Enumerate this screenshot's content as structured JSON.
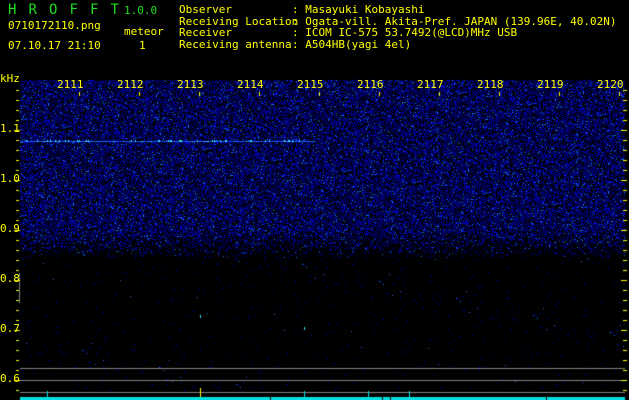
{
  "app": {
    "title_letters": [
      "H",
      "R",
      "O",
      "F",
      "F",
      "T"
    ],
    "version": "1.0.0"
  },
  "file": {
    "name": "0710172110.png",
    "datetime": "07.10.17 21:10"
  },
  "meteor": {
    "label": "meteor",
    "count": "1"
  },
  "info": [
    {
      "label": "Observer",
      "value": ": Masayuki Kobayashi"
    },
    {
      "label": "Receiving Location",
      "value": ": Ogata-vill. Akita-Pref. JAPAN (139.96E, 40.02N)"
    },
    {
      "label": "Receiver",
      "value": ": ICOM IC-575 53.7492(@LCD)MHz USB"
    },
    {
      "label": "Receiving antenna",
      "value": ": A504HB(yagi 4el)"
    }
  ],
  "axis": {
    "unit": "kHz",
    "freq_labels": [
      "1.1",
      "1.0",
      "0.9",
      "0.8",
      "0.7",
      "0.6"
    ],
    "time_labels": [
      "2111",
      "2112",
      "2113",
      "2114",
      "2115",
      "2116",
      "2117",
      "2118",
      "2119",
      "2120"
    ]
  },
  "colors": {
    "text": "#ffff00",
    "title": "#22dd22",
    "noise": "#2020ff",
    "signal": "#00e0ff",
    "reference_lines": "#808080"
  }
}
